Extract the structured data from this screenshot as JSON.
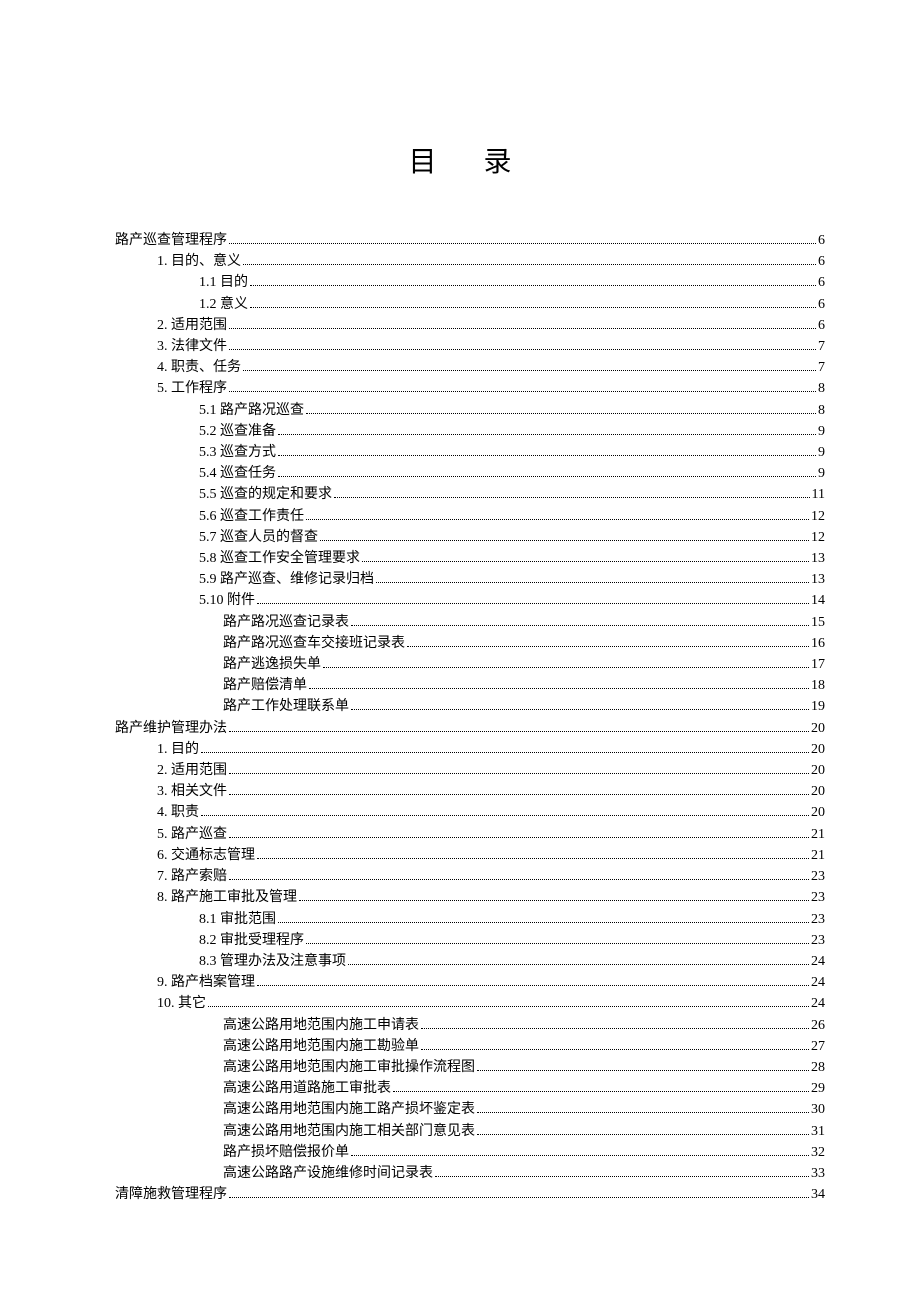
{
  "title": "目 录",
  "entries": [
    {
      "label": "路产巡查管理程序",
      "page": "6",
      "level": 0
    },
    {
      "label": "1.  目的、意义",
      "page": "6",
      "level": 1
    },
    {
      "label": "1.1  目的",
      "page": "6",
      "level": 2
    },
    {
      "label": "1.2  意义",
      "page": "6",
      "level": 2
    },
    {
      "label": "2.  适用范围",
      "page": "6",
      "level": 1
    },
    {
      "label": "3.  法律文件",
      "page": "7",
      "level": 1
    },
    {
      "label": "4.  职责、任务",
      "page": "7",
      "level": 1
    },
    {
      "label": "5.  工作程序",
      "page": "8",
      "level": 1
    },
    {
      "label": "5.1  路产路况巡查",
      "page": "8",
      "level": 2
    },
    {
      "label": "5.2  巡查准备",
      "page": "9",
      "level": 2
    },
    {
      "label": "5.3  巡查方式",
      "page": "9",
      "level": 2
    },
    {
      "label": "5.4  巡查任务",
      "page": "9",
      "level": 2
    },
    {
      "label": "5.5  巡查的规定和要求",
      "page": "11",
      "level": 2
    },
    {
      "label": "5.6  巡查工作责任",
      "page": "12",
      "level": 2
    },
    {
      "label": "5.7  巡查人员的督查",
      "page": "12",
      "level": 2
    },
    {
      "label": "5.8  巡查工作安全管理要求",
      "page": "13",
      "level": 2
    },
    {
      "label": "5.9  路产巡查、维修记录归档",
      "page": "13",
      "level": 2
    },
    {
      "label": "5.10  附件",
      "page": "14",
      "level": 2
    },
    {
      "label": "路产路况巡查记录表",
      "page": "15",
      "level": 3
    },
    {
      "label": "路产路况巡查车交接班记录表",
      "page": "16",
      "level": 3
    },
    {
      "label": "路产逃逸损失单",
      "page": "17",
      "level": 3
    },
    {
      "label": "路产赔偿清单",
      "page": "18",
      "level": 3
    },
    {
      "label": "路产工作处理联系单",
      "page": "19",
      "level": 3
    },
    {
      "label": "路产维护管理办法",
      "page": "20",
      "level": 0
    },
    {
      "label": "1.  目的",
      "page": "20",
      "level": 1
    },
    {
      "label": "2.  适用范围",
      "page": "20",
      "level": 1
    },
    {
      "label": "3.  相关文件",
      "page": "20",
      "level": 1
    },
    {
      "label": "4.  职责",
      "page": "20",
      "level": 1
    },
    {
      "label": "5.  路产巡查",
      "page": "21",
      "level": 1
    },
    {
      "label": "6.  交通标志管理",
      "page": "21",
      "level": 1
    },
    {
      "label": "7.  路产索赔",
      "page": "23",
      "level": 1
    },
    {
      "label": "8.  路产施工审批及管理",
      "page": "23",
      "level": 1
    },
    {
      "label": "8.1  审批范围",
      "page": "23",
      "level": 2
    },
    {
      "label": "8.2  审批受理程序",
      "page": "23",
      "level": 2
    },
    {
      "label": "8.3  管理办法及注意事项",
      "page": "24",
      "level": 2
    },
    {
      "label": "9.  路产档案管理",
      "page": "24",
      "level": 1
    },
    {
      "label": "10.  其它",
      "page": "24",
      "level": 1
    },
    {
      "label": "高速公路用地范围内施工申请表",
      "page": "26",
      "level": 3
    },
    {
      "label": "高速公路用地范围内施工勘验单",
      "page": "27",
      "level": 3
    },
    {
      "label": "高速公路用地范围内施工审批操作流程图",
      "page": "28",
      "level": 3
    },
    {
      "label": "高速公路用道路施工审批表",
      "page": "29",
      "level": 3
    },
    {
      "label": "高速公路用地范围内施工路产损坏鉴定表",
      "page": "30",
      "level": 3
    },
    {
      "label": "高速公路用地范围内施工相关部门意见表",
      "page": "31",
      "level": 3
    },
    {
      "label": "路产损坏赔偿报价单",
      "page": "32",
      "level": 3
    },
    {
      "label": "高速公路路产设施维修时间记录表",
      "page": "33",
      "level": 3
    },
    {
      "label": "清障施救管理程序",
      "page": "34",
      "level": 0
    }
  ]
}
